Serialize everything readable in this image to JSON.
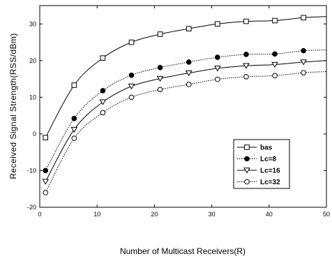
{
  "chart_data": {
    "type": "line",
    "xlabel": "Number of Multicast Receivers(R)",
    "ylabel": "Received Signal Strength(RSS/dBm)",
    "xlim": [
      0,
      50
    ],
    "ylim": [
      -20,
      35
    ],
    "xticks": [
      0,
      10,
      20,
      30,
      40,
      50
    ],
    "yticks": [
      -20,
      -10,
      0,
      10,
      20,
      30
    ],
    "x": [
      1,
      6,
      11,
      16,
      21,
      26,
      31,
      36,
      41,
      46
    ],
    "series": [
      {
        "name": "bas",
        "marker": "open-square",
        "dash": "solid",
        "values": [
          -1,
          13.3,
          20.7,
          25,
          27.2,
          28.7,
          30,
          30.7,
          30.9,
          31.7
        ],
        "end_value": 32
      },
      {
        "name": "Lc=8",
        "marker": "filled-circle",
        "dash": "dotted",
        "values": [
          -10,
          4.2,
          11.8,
          16,
          18.1,
          19.6,
          20.9,
          21.7,
          21.8,
          22.7
        ],
        "end_value": 22.9
      },
      {
        "name": "Lc=16",
        "marker": "open-triangle-down",
        "dash": "solid",
        "values": [
          -13,
          1.2,
          8.7,
          13,
          15.1,
          16.6,
          17.9,
          18.6,
          18.9,
          19.6
        ],
        "end_value": 20
      },
      {
        "name": "Lc=32",
        "marker": "open-circle",
        "dash": "dotted",
        "values": [
          -16,
          -1.2,
          5.8,
          10,
          12.1,
          13.5,
          14.9,
          15.6,
          15.9,
          16.7
        ],
        "end_value": 17
      }
    ],
    "grid": false,
    "legend_position": "lower-right"
  }
}
